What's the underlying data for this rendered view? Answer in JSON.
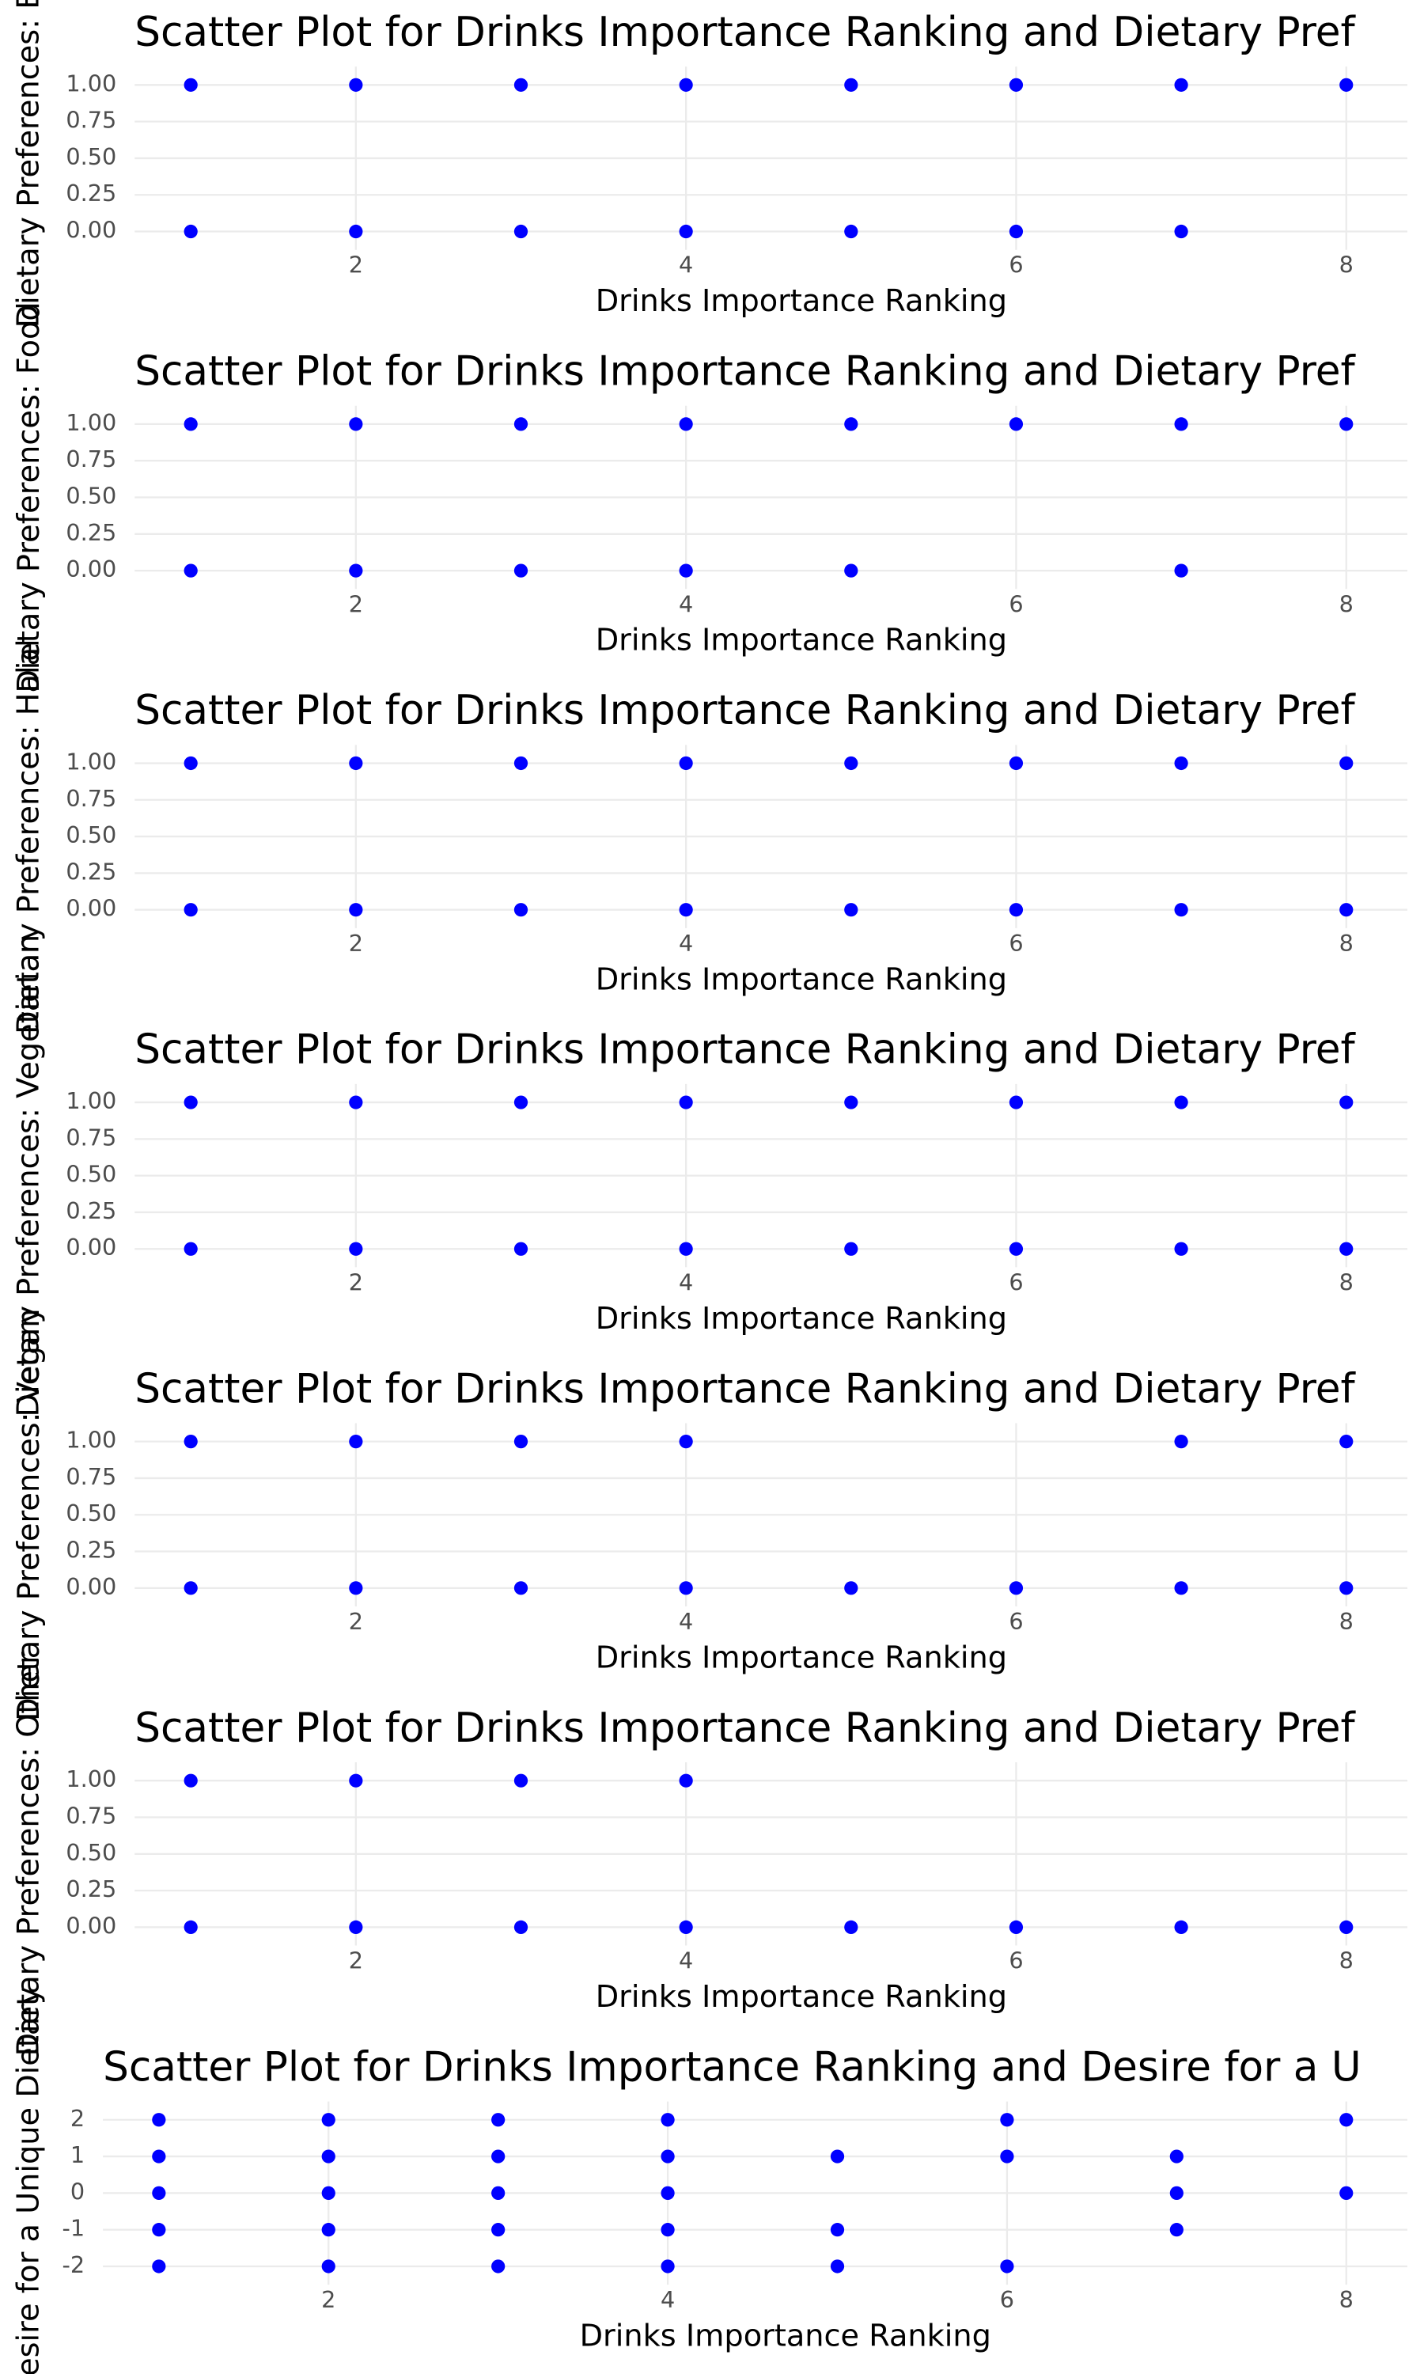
{
  "chart_data": [
    {
      "type": "scatter",
      "title": "Scatter Plot for Drinks Importance Ranking and Dietary Pref",
      "xlabel": "Drinks Importance Ranking",
      "ylabel": "Dietary Preferences: B",
      "color": "blue",
      "x": [
        1,
        2,
        3,
        4,
        5,
        6,
        7,
        8,
        1,
        2,
        3,
        4,
        5,
        6,
        7
      ],
      "y": [
        1,
        1,
        1,
        1,
        1,
        1,
        1,
        1,
        0,
        0,
        0,
        0,
        0,
        0,
        0
      ],
      "xlim": [
        0.66,
        8.37
      ],
      "ylim": [
        -0.125,
        1.125
      ],
      "xticks": [
        2,
        4,
        6,
        8
      ],
      "yticks": [
        {
          "value": 0,
          "label": "0.00"
        },
        {
          "value": 0.25,
          "label": "0.25"
        },
        {
          "value": 0.5,
          "label": "0.50"
        },
        {
          "value": 0.75,
          "label": "0.75"
        },
        {
          "value": 1,
          "label": "1.00"
        }
      ]
    },
    {
      "type": "scatter",
      "title": "Scatter Plot for Drinks Importance Ranking and Dietary Pref",
      "xlabel": "Drinks Importance Ranking",
      "ylabel": "Dietary Preferences: Food",
      "color": "blue",
      "x": [
        1,
        2,
        3,
        4,
        5,
        6,
        7,
        8,
        1,
        2,
        3,
        4,
        5,
        7
      ],
      "y": [
        1,
        1,
        1,
        1,
        1,
        1,
        1,
        1,
        0,
        0,
        0,
        0,
        0,
        0
      ],
      "xlim": [
        0.66,
        8.37
      ],
      "ylim": [
        -0.125,
        1.125
      ],
      "xticks": [
        2,
        4,
        6,
        8
      ],
      "yticks": [
        {
          "value": 0,
          "label": "0.00"
        },
        {
          "value": 0.25,
          "label": "0.25"
        },
        {
          "value": 0.5,
          "label": "0.50"
        },
        {
          "value": 0.75,
          "label": "0.75"
        },
        {
          "value": 1,
          "label": "1.00"
        }
      ]
    },
    {
      "type": "scatter",
      "title": "Scatter Plot for Drinks Importance Ranking and Dietary Pref",
      "xlabel": "Drinks Importance Ranking",
      "ylabel": "Dietary Preferences: Halal",
      "color": "blue",
      "x": [
        1,
        2,
        3,
        4,
        5,
        6,
        7,
        8,
        1,
        2,
        3,
        4,
        5,
        6,
        7,
        8
      ],
      "y": [
        1,
        1,
        1,
        1,
        1,
        1,
        1,
        1,
        0,
        0,
        0,
        0,
        0,
        0,
        0,
        0
      ],
      "xlim": [
        0.66,
        8.37
      ],
      "ylim": [
        -0.125,
        1.125
      ],
      "xticks": [
        2,
        4,
        6,
        8
      ],
      "yticks": [
        {
          "value": 0,
          "label": "0.00"
        },
        {
          "value": 0.25,
          "label": "0.25"
        },
        {
          "value": 0.5,
          "label": "0.50"
        },
        {
          "value": 0.75,
          "label": "0.75"
        },
        {
          "value": 1,
          "label": "1.00"
        }
      ]
    },
    {
      "type": "scatter",
      "title": "Scatter Plot for Drinks Importance Ranking and Dietary Pref",
      "xlabel": "Drinks Importance Ranking",
      "ylabel": "Dietary Preferences: Vegetarian",
      "color": "blue",
      "x": [
        1,
        2,
        3,
        4,
        5,
        6,
        7,
        8,
        1,
        2,
        3,
        4,
        5,
        6,
        7,
        8
      ],
      "y": [
        1,
        1,
        1,
        1,
        1,
        1,
        1,
        1,
        0,
        0,
        0,
        0,
        0,
        0,
        0,
        0
      ],
      "xlim": [
        0.66,
        8.37
      ],
      "ylim": [
        -0.125,
        1.125
      ],
      "xticks": [
        2,
        4,
        6,
        8
      ],
      "yticks": [
        {
          "value": 0,
          "label": "0.00"
        },
        {
          "value": 0.25,
          "label": "0.25"
        },
        {
          "value": 0.5,
          "label": "0.50"
        },
        {
          "value": 0.75,
          "label": "0.75"
        },
        {
          "value": 1,
          "label": "1.00"
        }
      ]
    },
    {
      "type": "scatter",
      "title": "Scatter Plot for Drinks Importance Ranking and Dietary Pref",
      "xlabel": "Drinks Importance Ranking",
      "ylabel": "Dietary Preferences: Vegan",
      "color": "blue",
      "x": [
        1,
        2,
        3,
        4,
        7,
        8,
        1,
        2,
        3,
        4,
        5,
        6,
        7,
        8
      ],
      "y": [
        1,
        1,
        1,
        1,
        1,
        1,
        0,
        0,
        0,
        0,
        0,
        0,
        0,
        0
      ],
      "xlim": [
        0.66,
        8.37
      ],
      "ylim": [
        -0.125,
        1.125
      ],
      "xticks": [
        2,
        4,
        6,
        8
      ],
      "yticks": [
        {
          "value": 0,
          "label": "0.00"
        },
        {
          "value": 0.25,
          "label": "0.25"
        },
        {
          "value": 0.5,
          "label": "0.50"
        },
        {
          "value": 0.75,
          "label": "0.75"
        },
        {
          "value": 1,
          "label": "1.00"
        }
      ]
    },
    {
      "type": "scatter",
      "title": "Scatter Plot for Drinks Importance Ranking and Dietary Pref",
      "xlabel": "Drinks Importance Ranking",
      "ylabel": "Dietary Preferences: Other",
      "color": "blue",
      "x": [
        1,
        2,
        3,
        4,
        1,
        2,
        3,
        4,
        5,
        6,
        7,
        8
      ],
      "y": [
        1,
        1,
        1,
        1,
        0,
        0,
        0,
        0,
        0,
        0,
        0,
        0
      ],
      "xlim": [
        0.66,
        8.37
      ],
      "ylim": [
        -0.125,
        1.125
      ],
      "xticks": [
        2,
        4,
        6,
        8
      ],
      "yticks": [
        {
          "value": 0,
          "label": "0.00"
        },
        {
          "value": 0.25,
          "label": "0.25"
        },
        {
          "value": 0.5,
          "label": "0.50"
        },
        {
          "value": 0.75,
          "label": "0.75"
        },
        {
          "value": 1,
          "label": "1.00"
        }
      ]
    },
    {
      "type": "scatter",
      "title": "Scatter Plot for Drinks Importance Ranking and Desire for a U",
      "xlabel": "Drinks Importance Ranking",
      "ylabel": "Desire for a Unique Dietary",
      "color": "blue",
      "x": [
        1,
        2,
        3,
        4,
        6,
        8,
        1,
        2,
        3,
        4,
        5,
        6,
        7,
        1,
        2,
        3,
        4,
        7,
        8,
        1,
        2,
        3,
        4,
        5,
        7,
        1,
        2,
        3,
        4,
        5,
        6
      ],
      "y": [
        2,
        2,
        2,
        2,
        2,
        2,
        1,
        1,
        1,
        1,
        1,
        1,
        1,
        0,
        0,
        0,
        0,
        0,
        0,
        -1,
        -1,
        -1,
        -1,
        -1,
        -1,
        -2,
        -2,
        -2,
        -2,
        -2,
        -2
      ],
      "xlim": [
        0.67,
        8.36
      ],
      "ylim": [
        -2.5,
        2.5
      ],
      "xticks": [
        2,
        4,
        6,
        8
      ],
      "yticks": [
        -2,
        -1,
        0,
        1,
        2
      ]
    }
  ]
}
